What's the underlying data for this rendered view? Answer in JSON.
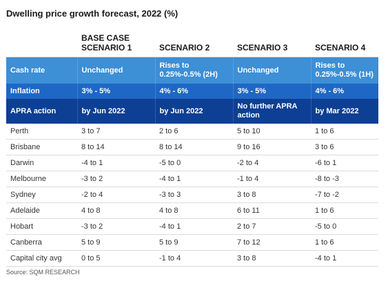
{
  "title": "Dwelling price growth forecast, 2022 (%)",
  "columns": [
    "",
    "BASE CASE\nSCENARIO 1",
    "SCENARIO 2",
    "SCENARIO 3",
    "SCENARIO 4"
  ],
  "bands": [
    {
      "label": "Cash rate",
      "values": [
        "Unchanged",
        "Rises to 0.25%-0.5% (2H)",
        "Unchanged",
        "Rises to 0.25%-0.5% (1H)"
      ],
      "color": "#3d8fd6"
    },
    {
      "label": "Inflation",
      "values": [
        "3% - 5%",
        "4% - 6%",
        "3% - 5%",
        "4% - 6%"
      ],
      "color": "#1f67c4"
    },
    {
      "label": "APRA action",
      "values": [
        "by Jun 2022",
        "by Jun 2022",
        "No further APRA action",
        "by Mar 2022"
      ],
      "color": "#0d3f94"
    }
  ],
  "rows": [
    {
      "city": "Perth",
      "values": [
        "3 to 7",
        "2 to 6",
        "5 to 10",
        "1 to 6"
      ]
    },
    {
      "city": "Brisbane",
      "values": [
        "8 to 14",
        "8 to 14",
        "9 to 16",
        "3 to 6"
      ]
    },
    {
      "city": "Darwin",
      "values": [
        "-4 to 1",
        "-5 to 0",
        "-2 to 4",
        "-6 to 1"
      ]
    },
    {
      "city": "Melbourne",
      "values": [
        "-3 to 2",
        "-4 to 1",
        "-1 to 4",
        "-8 to -3"
      ]
    },
    {
      "city": "Sydney",
      "values": [
        "-2 to 4",
        "-3 to 3",
        "3 to 8",
        "-7 to -2"
      ]
    },
    {
      "city": "Adelaide",
      "values": [
        "4 to 8",
        "4 to 8",
        "6 to 11",
        "1 to 6"
      ]
    },
    {
      "city": "Hobart",
      "values": [
        "-3 to 2",
        "-4 to 1",
        "2 to 7",
        "-5 to 0"
      ]
    },
    {
      "city": "Canberra",
      "values": [
        "5 to 9",
        "5 to 9",
        "7 to 12",
        "1 to 6"
      ]
    },
    {
      "city": "Capital city avg",
      "values": [
        "0 to 5",
        "-1 to 4",
        "3 to 8",
        "-4 to 1"
      ]
    }
  ],
  "source": "Source: SQM RESEARCH"
}
